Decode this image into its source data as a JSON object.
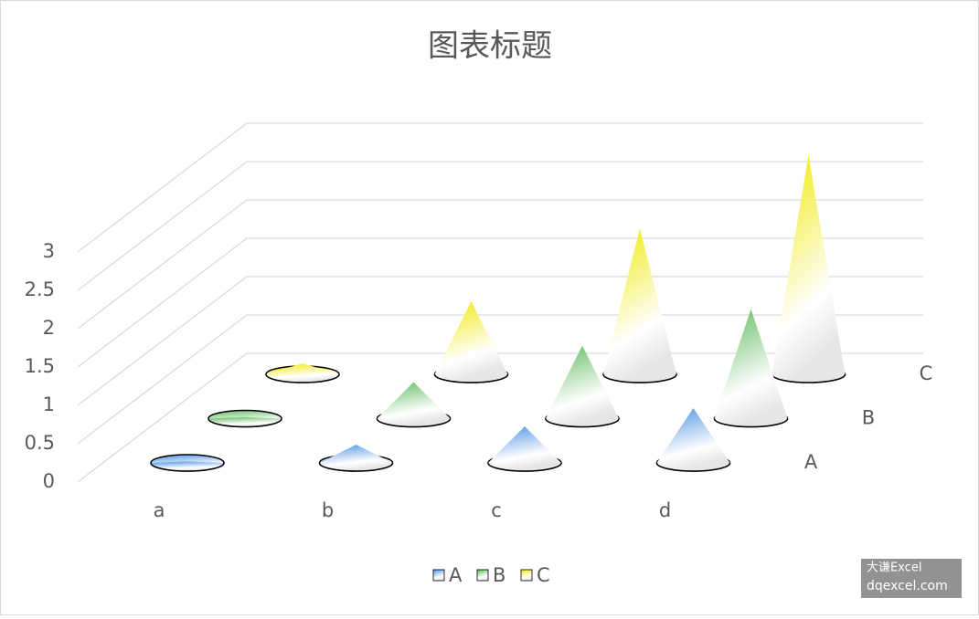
{
  "chart_data": {
    "type": "cone3d",
    "title": "图表标题",
    "categories": [
      "a",
      "b",
      "c",
      "d"
    ],
    "series": [
      {
        "name": "A",
        "color": "#4a90e2",
        "values": [
          0.02,
          0.25,
          0.5,
          0.75
        ]
      },
      {
        "name": "B",
        "color": "#5cb85c",
        "values": [
          0.02,
          0.5,
          1,
          1.5
        ]
      },
      {
        "name": "C",
        "color": "#f0e800",
        "values": [
          0.15,
          1,
          2,
          3
        ]
      }
    ],
    "ylim": [
      0,
      3
    ],
    "yticks": [
      0,
      0.5,
      1,
      1.5,
      2,
      2.5,
      3
    ],
    "grid": true,
    "legend": "bottom",
    "watermark": [
      "大谦Excel",
      "dqexcel.com"
    ]
  }
}
